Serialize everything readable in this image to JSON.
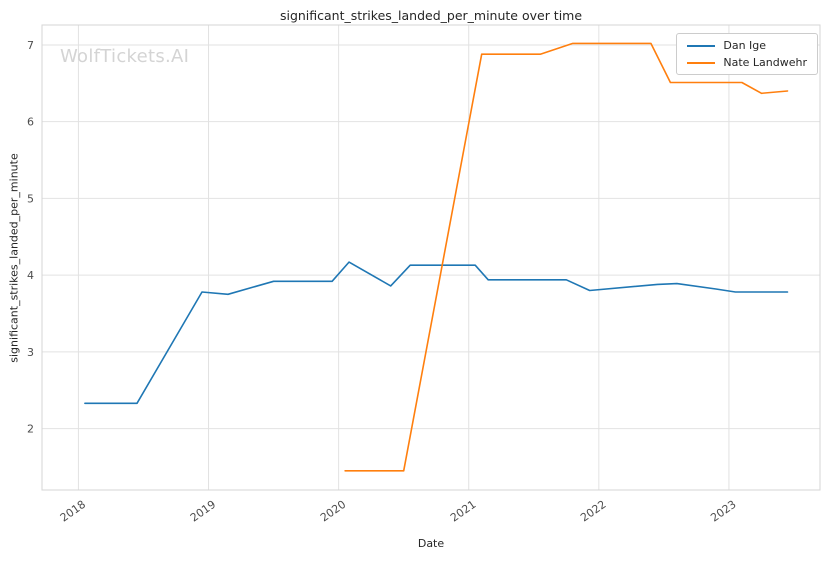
{
  "watermark": "WolfTickets.AI",
  "chart_data": {
    "type": "line",
    "title": "significant_strikes_landed_per_minute over time",
    "xlabel": "Date",
    "ylabel": "significant_strikes_landed_per_minute",
    "grid": true,
    "legend_position": "upper right",
    "xlim": [
      2017.72,
      2023.7
    ],
    "ylim": [
      1.2,
      7.26
    ],
    "xticks": [
      2018,
      2019,
      2020,
      2021,
      2022,
      2023
    ],
    "yticks": [
      2,
      3,
      4,
      5,
      6,
      7
    ],
    "series": [
      {
        "name": "Dan Ige",
        "color": "#1f77b4",
        "x": [
          2018.05,
          2018.45,
          2018.95,
          2019.15,
          2019.5,
          2019.95,
          2020.08,
          2020.4,
          2020.55,
          2021.05,
          2021.15,
          2021.75,
          2021.93,
          2022.45,
          2022.6,
          2022.9,
          2023.05,
          2023.45
        ],
        "y": [
          2.33,
          2.33,
          3.78,
          3.75,
          3.92,
          3.92,
          4.17,
          3.86,
          4.13,
          4.13,
          3.94,
          3.94,
          3.8,
          3.88,
          3.89,
          3.82,
          3.78,
          3.78
        ]
      },
      {
        "name": "Nate Landwehr",
        "color": "#ff7f0e",
        "x": [
          2020.05,
          2020.5,
          2021.1,
          2021.55,
          2021.8,
          2022.4,
          2022.55,
          2023.1,
          2023.25,
          2023.45
        ],
        "y": [
          1.45,
          1.45,
          6.88,
          6.88,
          7.02,
          7.02,
          6.51,
          6.51,
          6.37,
          6.4
        ]
      }
    ]
  }
}
